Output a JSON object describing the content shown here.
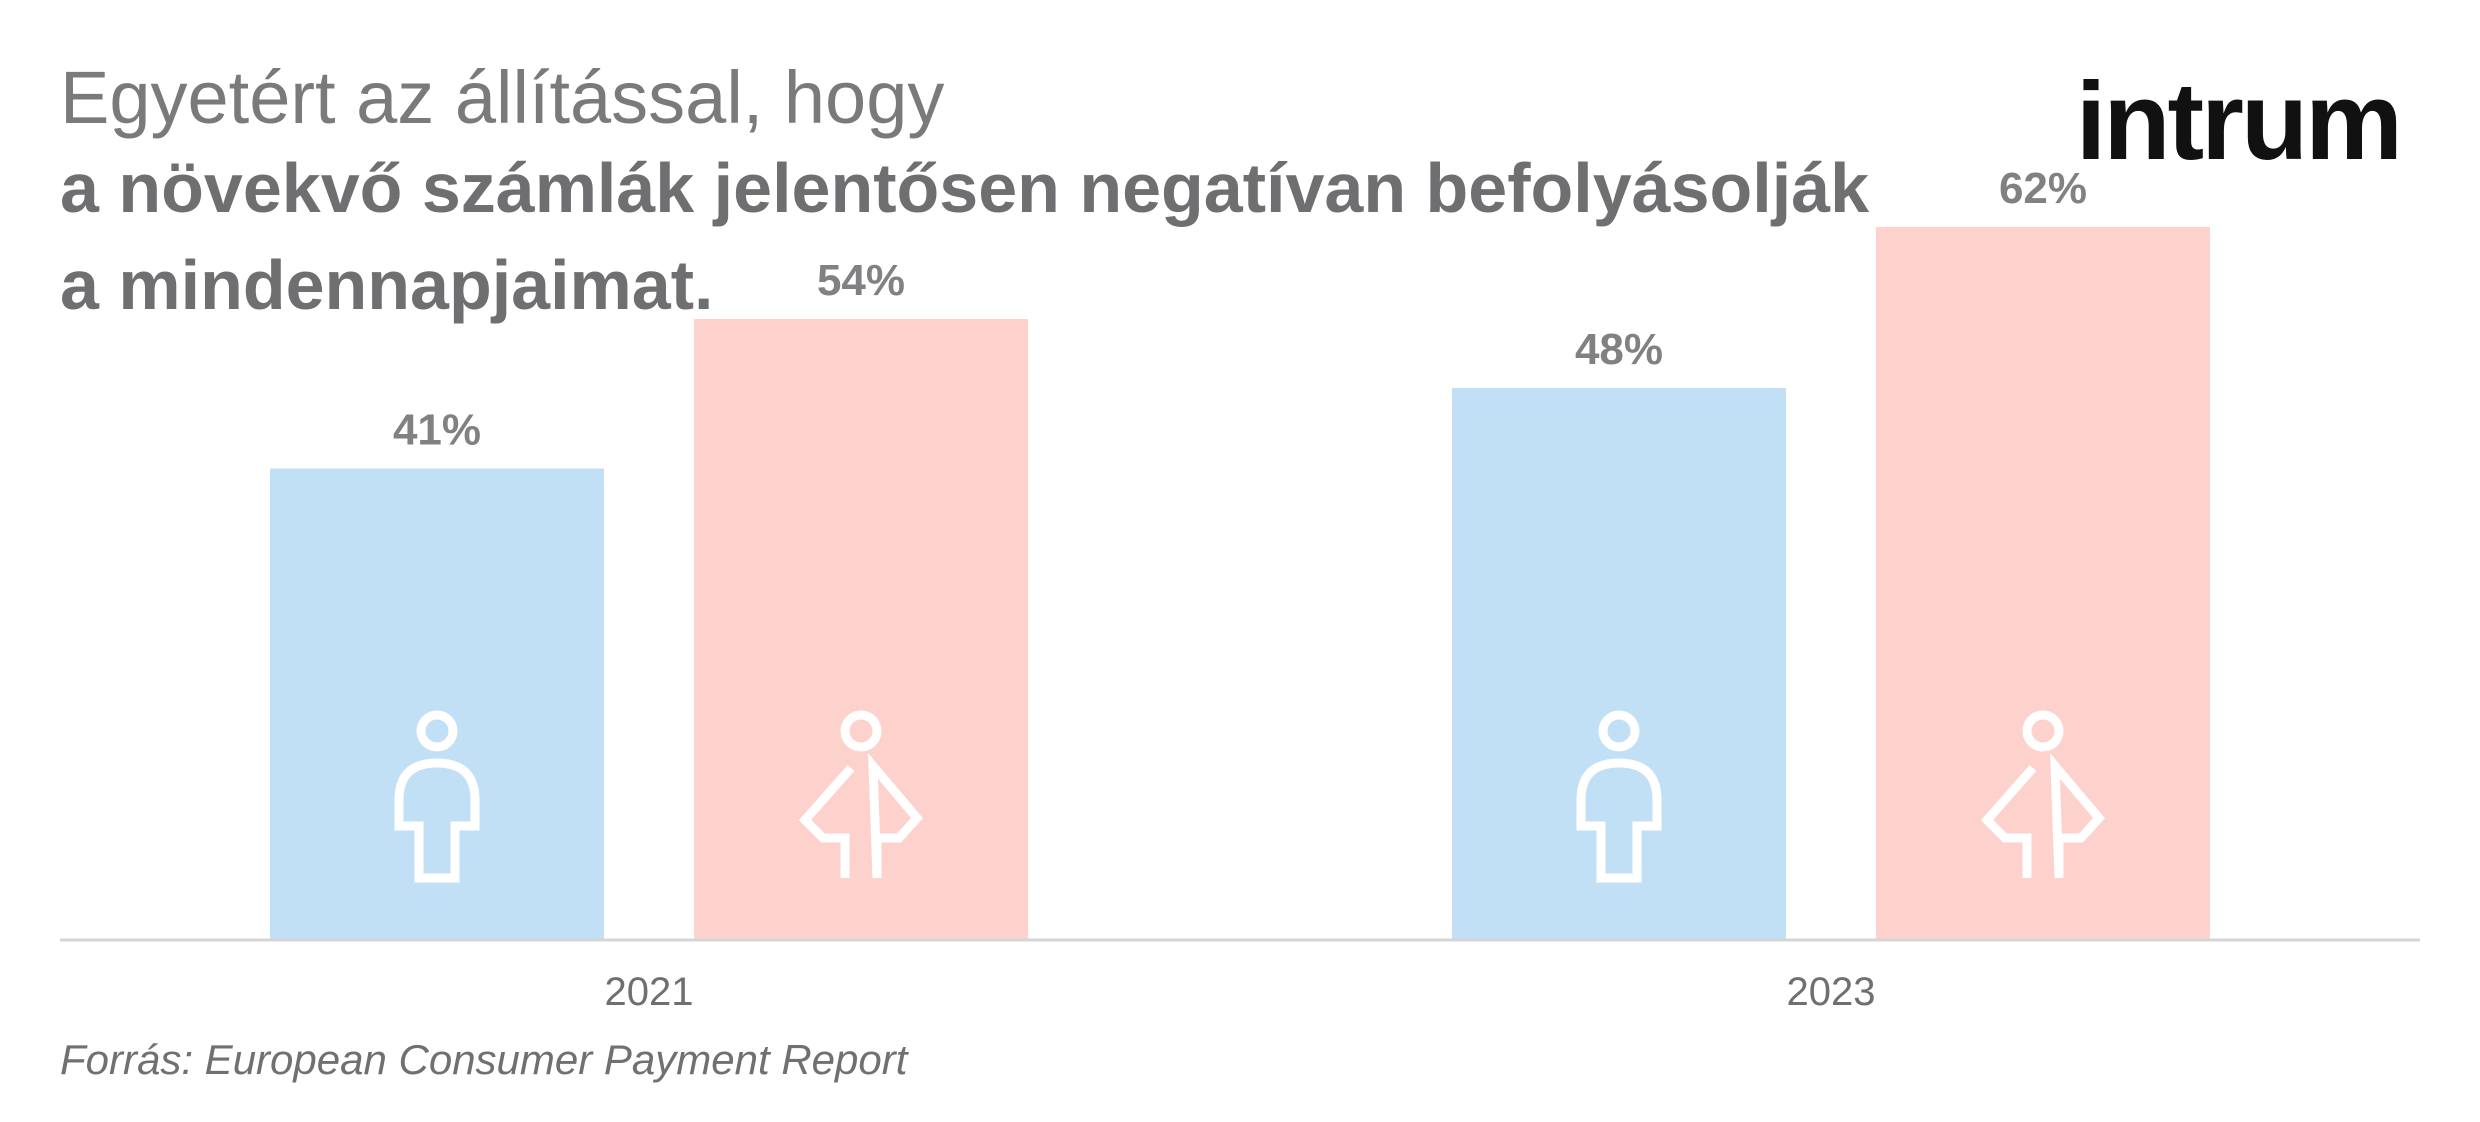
{
  "header": {
    "title_line1": "Egyetért az állítással, hogy",
    "title_line2": "a növekvő számlák jelentősen negatívan befolyásolják",
    "title_line3": "a mindennapjaimat."
  },
  "logo": {
    "text": "intrum"
  },
  "footer": {
    "source": "Forrás: European Consumer Payment Report"
  },
  "colors": {
    "male": "#c1dff5",
    "female": "#fed2cc",
    "label_text": "#818183",
    "axis": "#d5d5d7",
    "icon": "#ffffff"
  },
  "chart_data": {
    "type": "bar",
    "categories": [
      "2021",
      "2023"
    ],
    "series": [
      {
        "icon": "male-icon",
        "values": [
          41,
          48
        ],
        "labels": [
          "41%",
          "48%"
        ]
      },
      {
        "icon": "female-icon",
        "values": [
          54,
          62
        ],
        "labels": [
          "54%",
          "62%"
        ]
      }
    ],
    "ylim": [
      0,
      100
    ],
    "grid": false,
    "legend": "none"
  }
}
